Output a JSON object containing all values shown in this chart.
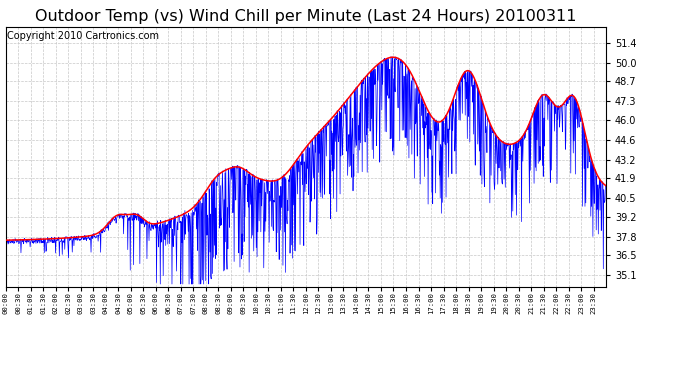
{
  "title": "Outdoor Temp (vs) Wind Chill per Minute (Last 24 Hours) 20100311",
  "copyright": "Copyright 2010 Cartronics.com",
  "yticks": [
    35.1,
    36.5,
    37.8,
    39.2,
    40.5,
    41.9,
    43.2,
    44.6,
    46.0,
    47.3,
    48.7,
    50.0,
    51.4
  ],
  "ymin": 34.3,
  "ymax": 52.5,
  "bg_color": "#ffffff",
  "plot_bg_color": "#ffffff",
  "grid_color": "#c8c8c8",
  "line_red_color": "#ff0000",
  "line_blue_color": "#0000ff",
  "title_fontsize": 11.5,
  "copyright_fontsize": 7
}
